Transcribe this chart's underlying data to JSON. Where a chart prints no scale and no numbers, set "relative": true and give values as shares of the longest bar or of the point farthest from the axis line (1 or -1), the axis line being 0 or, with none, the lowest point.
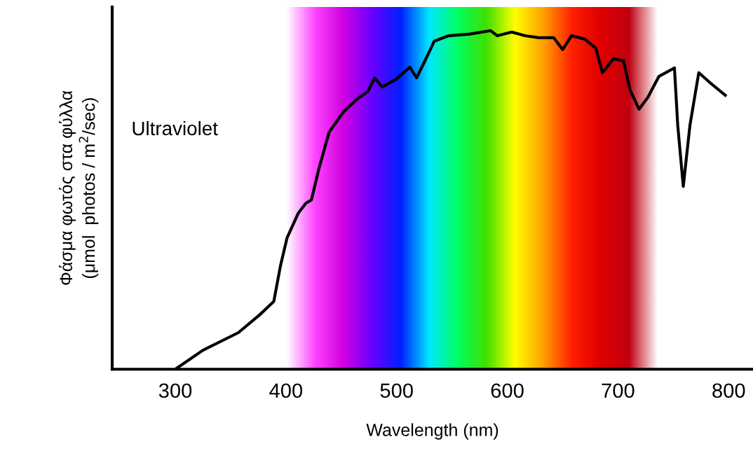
{
  "chart_data": {
    "type": "line",
    "relative": true,
    "xlabel": "Wavelength (nm)",
    "ylabel": "Φάσμα φωτός στα φύλλα\n(μmol  photos / m$^{2}$/sec)",
    "annotations": [
      "Ultraviolet"
    ],
    "xlim": [
      243,
      822
    ],
    "xticks": [
      300,
      400,
      500,
      600,
      700,
      800
    ],
    "x": [
      300,
      325,
      357,
      376,
      389,
      395,
      401,
      411,
      418,
      423,
      430,
      439,
      452,
      465,
      474,
      480,
      487,
      499,
      512,
      518,
      525,
      534,
      547,
      566,
      585,
      591,
      604,
      616,
      629,
      642,
      650,
      658,
      670,
      680,
      686,
      696,
      705,
      711,
      719,
      727,
      737,
      751,
      754,
      759,
      765,
      773,
      784,
      797
    ],
    "series": [
      {
        "color": "#000000",
        "values": [
          0,
          0.056,
          0.108,
          0.16,
          0.2,
          0.305,
          0.388,
          0.46,
          0.49,
          0.5,
          0.595,
          0.7,
          0.76,
          0.8,
          0.82,
          0.86,
          0.834,
          0.855,
          0.892,
          0.861,
          0.907,
          0.969,
          0.985,
          0.99,
          1,
          0.985,
          0.996,
          0.985,
          0.979,
          0.979,
          0.944,
          0.985,
          0.975,
          0.948,
          0.876,
          0.917,
          0.911,
          0.824,
          0.768,
          0.803,
          0.865,
          0.89,
          0.72,
          0.54,
          0.72,
          0.876,
          0.844,
          0.809
        ]
      }
    ],
    "bands": [
      {
        "axis": "x",
        "from": 400,
        "to": 736
      }
    ],
    "grid": false,
    "legend": false,
    "marker": "none",
    "line_style": "solid",
    "tick_labels": "x"
  }
}
